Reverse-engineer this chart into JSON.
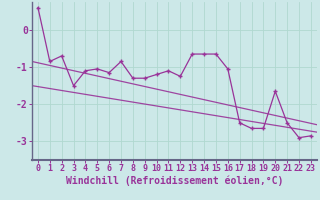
{
  "xlabel": "Windchill (Refroidissement éolien,°C)",
  "bg_color": "#cce8e8",
  "line_color": "#993399",
  "spine_color": "#666688",
  "hours": [
    0,
    1,
    2,
    3,
    4,
    5,
    6,
    7,
    8,
    9,
    10,
    11,
    12,
    13,
    14,
    15,
    16,
    17,
    18,
    19,
    20,
    21,
    22,
    23
  ],
  "values": [
    0.6,
    -0.85,
    -0.7,
    -1.5,
    -1.1,
    -1.05,
    -1.15,
    -0.85,
    -1.3,
    -1.3,
    -1.2,
    -1.1,
    -1.25,
    -0.65,
    -0.65,
    -0.65,
    -1.05,
    -2.5,
    -2.65,
    -2.65,
    -1.65,
    -2.5,
    -2.9,
    -2.85
  ],
  "trend_line1": [
    [
      -0.5,
      23.5
    ],
    [
      -0.85,
      -2.55
    ]
  ],
  "trend_line2": [
    [
      -0.5,
      23.5
    ],
    [
      -1.5,
      -2.75
    ]
  ],
  "ylim": [
    -3.5,
    0.75
  ],
  "xlim": [
    -0.5,
    23.5
  ],
  "grid_color": "#b0d8d0",
  "yticks": [
    0,
    -1,
    -2,
    -3
  ],
  "ytick_labels": [
    "0",
    "-1",
    "-2",
    "-3"
  ],
  "tick_fontsize": 6,
  "label_fontsize": 7
}
